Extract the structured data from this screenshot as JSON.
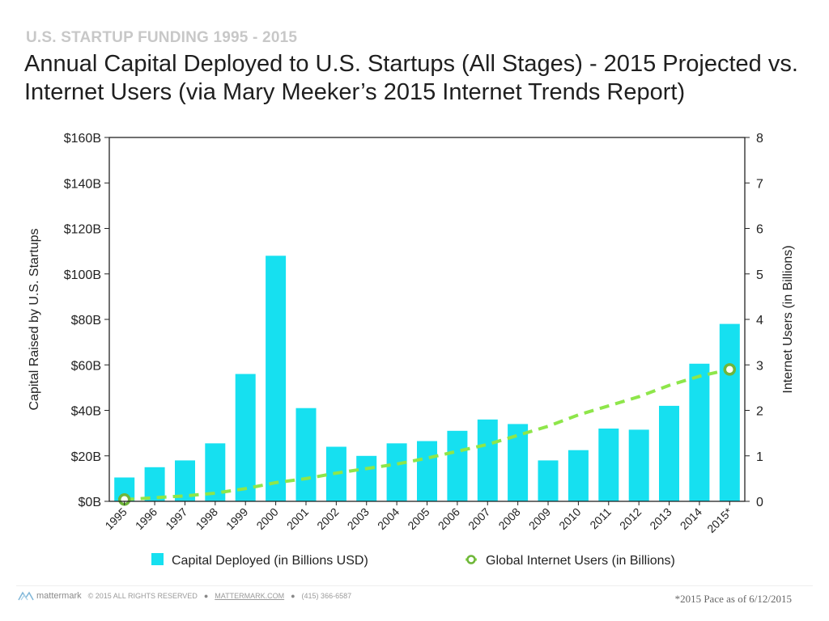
{
  "kicker": "U.S. STARTUP FUNDING 1995 - 2015",
  "title": "Annual Capital Deployed to U.S. Startups (All Stages) - 2015 Projected vs. Internet Users (via Mary Meeker’s 2015 Internet Trends Report)",
  "colors": {
    "bar": "#16e0f0",
    "line": "#8ee64a",
    "marker": "#6fb63a"
  },
  "chart_data": {
    "type": "bar",
    "categories": [
      "1995",
      "1996",
      "1997",
      "1998",
      "1999",
      "2000",
      "2001",
      "2002",
      "2003",
      "2004",
      "2005",
      "2006",
      "2007",
      "2008",
      "2009",
      "2010",
      "2011",
      "2012",
      "2013",
      "2014",
      "2015*"
    ],
    "series": [
      {
        "name": "Capital Deployed (in Billions USD)",
        "type": "bar",
        "axis": "left",
        "values": [
          10.5,
          15,
          18,
          25.5,
          56,
          108,
          41,
          24,
          20,
          25.5,
          26.5,
          31,
          36,
          34,
          18,
          22.5,
          32,
          31.5,
          42,
          60.5,
          78
        ]
      },
      {
        "name": "Global Internet Users (in Billions)",
        "type": "line",
        "axis": "right",
        "values": [
          0.04,
          0.08,
          0.12,
          0.18,
          0.28,
          0.41,
          0.5,
          0.62,
          0.72,
          0.82,
          0.95,
          1.1,
          1.25,
          1.45,
          1.65,
          1.9,
          2.1,
          2.3,
          2.55,
          2.75,
          2.9
        ]
      }
    ],
    "ylabel": "Capital Raised by U.S. Startups",
    "y2label": "Internet Users (in Billions)",
    "ylim": [
      0,
      160
    ],
    "y2lim": [
      0,
      8
    ],
    "yticks": [
      "$0B",
      "$20B",
      "$40B",
      "$60B",
      "$80B",
      "$100B",
      "$120B",
      "$140B",
      "$160B"
    ],
    "y2ticks": [
      "0",
      "1",
      "2",
      "3",
      "4",
      "5",
      "6",
      "7",
      "8"
    ],
    "legend_position": "bottom"
  },
  "footer": {
    "brand": "mattermark",
    "copyright": "© 2015 ALL RIGHTS RESERVED",
    "site": "MATTERMARK.COM",
    "phone": "(415) 366-6587",
    "footnote": "*2015 Pace as of 6/12/2015"
  }
}
